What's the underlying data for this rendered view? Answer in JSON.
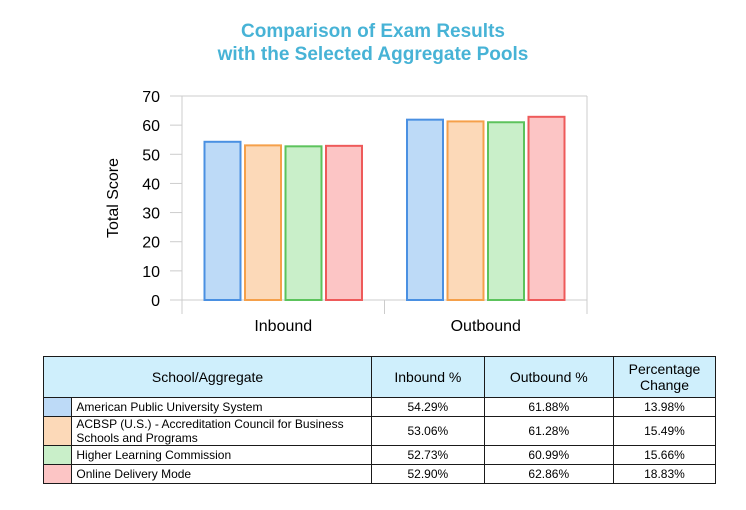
{
  "chart_data": {
    "type": "bar",
    "title": "Comparison of Exam Results with the Selected Aggregate Pools",
    "title_lines": [
      "Comparison of Exam Results",
      "with the Selected Aggregate Pools"
    ],
    "xlabel": "",
    "ylabel": "Total Score",
    "ylim": [
      0,
      70
    ],
    "yticks": [
      0,
      10,
      20,
      30,
      40,
      50,
      60,
      70
    ],
    "categories": [
      "Inbound",
      "Outbound"
    ],
    "series": [
      {
        "name": "American Public University System",
        "values": [
          54.29,
          61.88
        ],
        "fill": "#bddaf7",
        "stroke": "#4a90e2"
      },
      {
        "name": "ACBSP (U.S.) - Accreditation Council for Business Schools and Programs",
        "values": [
          53.06,
          61.28
        ],
        "fill": "#fcd9b8",
        "stroke": "#f5a04a"
      },
      {
        "name": "Higher Learning Commission",
        "values": [
          52.73,
          60.99
        ],
        "fill": "#c9efc9",
        "stroke": "#5cc35c"
      },
      {
        "name": "Online Delivery Mode",
        "values": [
          52.9,
          62.86
        ],
        "fill": "#fcc5c5",
        "stroke": "#ee5a5a"
      }
    ],
    "grid": false
  },
  "table": {
    "headers": [
      "School/Aggregate",
      "Inbound %",
      "Outbound %",
      "Percentage Change"
    ],
    "rows": [
      {
        "swatch": "#bddaf7",
        "name": "American Public University System",
        "inbound": "54.29%",
        "outbound": "61.88%",
        "change": "13.98%"
      },
      {
        "swatch": "#fcd9b8",
        "name": "ACBSP (U.S.) - Accreditation Council for Business Schools and Programs",
        "inbound": "53.06%",
        "outbound": "61.28%",
        "change": "15.49%"
      },
      {
        "swatch": "#c9efc9",
        "name": "Higher Learning Commission",
        "inbound": "52.73%",
        "outbound": "60.99%",
        "change": "15.66%"
      },
      {
        "swatch": "#fcc5c5",
        "name": "Online Delivery Mode",
        "inbound": "52.90%",
        "outbound": "62.86%",
        "change": "18.83%"
      }
    ]
  }
}
